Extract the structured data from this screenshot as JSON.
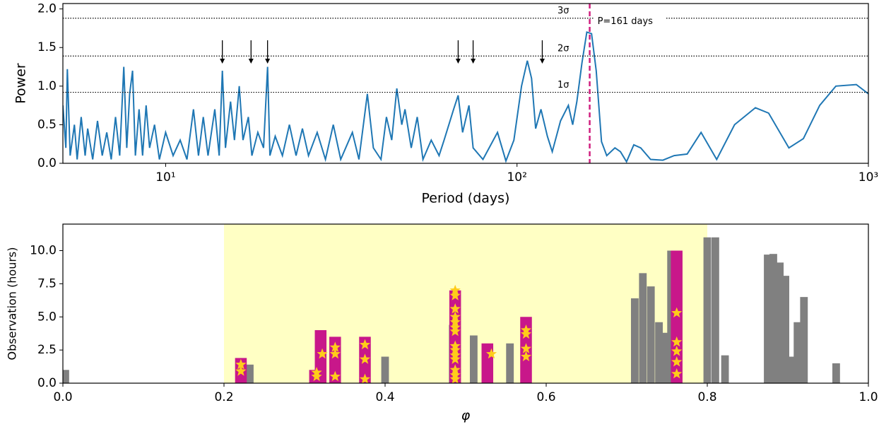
{
  "chart_data": [
    {
      "type": "line",
      "xlabel": "Period (days)",
      "ylabel": "Power",
      "xlog": true,
      "color": "#1f77b4",
      "xlim": [
        5.1,
        1000
      ],
      "ylim": [
        0,
        2.07
      ],
      "xticks": [
        {
          "value": 10,
          "label": "10¹"
        },
        {
          "value": 100,
          "label": "10²"
        },
        {
          "value": 1000,
          "label": "10³"
        }
      ],
      "yticks": [
        {
          "value": 0,
          "label": "0.0"
        },
        {
          "value": 0.5,
          "label": "0.5"
        },
        {
          "value": 1,
          "label": "1.0"
        },
        {
          "value": 1.5,
          "label": "1.5"
        },
        {
          "value": 2,
          "label": "2.0"
        }
      ],
      "x": [
        5.1,
        5.2,
        5.25,
        5.35,
        5.5,
        5.6,
        5.75,
        5.9,
        6.0,
        6.2,
        6.4,
        6.6,
        6.8,
        7.0,
        7.2,
        7.4,
        7.6,
        7.75,
        7.9,
        8.05,
        8.2,
        8.4,
        8.6,
        8.8,
        9.0,
        9.3,
        9.6,
        10.0,
        10.5,
        11.0,
        11.5,
        12.0,
        12.4,
        12.8,
        13.2,
        13.8,
        14.2,
        14.5,
        14.8,
        15.3,
        15.7,
        16.2,
        16.6,
        17.2,
        17.6,
        18.3,
        19.0,
        19.5,
        19.8,
        20.5,
        21.5,
        22.5,
        23.5,
        24.5,
        25.5,
        27,
        28.5,
        30,
        31.5,
        34,
        35.5,
        37.5,
        39,
        41,
        42.5,
        44,
        45.5,
        47,
        48,
        50,
        52,
        54,
        57,
        60,
        62,
        66,
        68,
        70,
        73,
        75,
        80,
        88,
        93,
        98,
        103,
        107,
        110,
        113,
        117,
        122,
        126,
        133,
        140,
        144,
        148,
        153,
        158,
        163,
        168,
        174,
        180,
        190,
        197,
        205,
        215,
        225,
        240,
        260,
        280,
        305,
        334,
        370,
        416,
        477,
        520,
        594,
        653,
        727,
        808,
        924,
        1000
      ],
      "values": [
        0.75,
        0.2,
        1.22,
        0.1,
        0.5,
        0.05,
        0.6,
        0.1,
        0.45,
        0.05,
        0.55,
        0.1,
        0.4,
        0.05,
        0.6,
        0.1,
        1.25,
        0.2,
        0.9,
        1.2,
        0.1,
        0.7,
        0.1,
        0.75,
        0.2,
        0.5,
        0.05,
        0.4,
        0.1,
        0.3,
        0.05,
        0.7,
        0.1,
        0.6,
        0.1,
        0.7,
        0.1,
        1.2,
        0.2,
        0.8,
        0.3,
        1.0,
        0.3,
        0.6,
        0.1,
        0.4,
        0.2,
        1.25,
        0.1,
        0.35,
        0.1,
        0.5,
        0.1,
        0.45,
        0.1,
        0.4,
        0.05,
        0.5,
        0.05,
        0.4,
        0.05,
        0.9,
        0.2,
        0.05,
        0.6,
        0.3,
        0.97,
        0.5,
        0.7,
        0.2,
        0.6,
        0.05,
        0.3,
        0.1,
        0.3,
        0.7,
        0.88,
        0.4,
        0.75,
        0.2,
        0.05,
        0.4,
        0.03,
        0.3,
        1.0,
        1.33,
        1.1,
        0.45,
        0.7,
        0.35,
        0.15,
        0.55,
        0.75,
        0.5,
        0.8,
        1.3,
        1.7,
        1.68,
        1.2,
        0.28,
        0.1,
        0.2,
        0.15,
        0.02,
        0.24,
        0.2,
        0.05,
        0.04,
        0.1,
        0.12,
        0.4,
        0.05,
        0.5,
        0.72,
        0.65,
        0.2,
        0.32,
        0.75,
        1.0,
        1.02,
        0.9
      ],
      "hlines": [
        {
          "value": 0.92,
          "label": "1σ"
        },
        {
          "value": 1.39,
          "label": "2σ"
        },
        {
          "value": 1.88,
          "label": "3σ"
        }
      ],
      "vline": 161,
      "vline_color": "#d01f7f",
      "annotation": "P=161 days",
      "arrows": [
        14.5,
        17.5,
        19.5,
        68,
        75,
        118
      ]
    },
    {
      "type": "bar",
      "xlabel": "φ",
      "ylabel": "Observation (hours)",
      "xlim": [
        0,
        1
      ],
      "ylim": [
        0,
        12
      ],
      "xticks": [
        {
          "value": 0,
          "label": "0.0"
        },
        {
          "value": 0.2,
          "label": "0.2"
        },
        {
          "value": 0.4,
          "label": "0.4"
        },
        {
          "value": 0.6,
          "label": "0.6"
        },
        {
          "value": 0.8,
          "label": "0.8"
        },
        {
          "value": 1,
          "label": "1.0"
        }
      ],
      "yticks": [
        {
          "value": 0,
          "label": "0.0"
        },
        {
          "value": 2.5,
          "label": "2.5"
        },
        {
          "value": 5,
          "label": "5.0"
        },
        {
          "value": 7.5,
          "label": "7.5"
        },
        {
          "value": 10,
          "label": "10.0"
        }
      ],
      "span": [
        0.2,
        0.8
      ],
      "span_color": "#ffffc4",
      "series": [
        {
          "color": "#808080",
          "x": [
            0.003,
            0.232,
            0.4,
            0.484,
            0.51,
            0.555,
            0.71,
            0.72,
            0.73,
            0.74,
            0.748,
            0.755,
            0.8,
            0.81,
            0.822,
            0.875,
            0.882,
            0.89,
            0.897,
            0.905,
            0.912,
            0.92,
            0.96
          ],
          "values": [
            1.0,
            1.4,
            2.0,
            4.4,
            3.6,
            3.0,
            6.4,
            8.3,
            7.3,
            4.6,
            3.8,
            10.0,
            11.0,
            11.0,
            2.1,
            9.7,
            9.75,
            9.1,
            8.1,
            2.0,
            4.6,
            6.5,
            1.5
          ]
        },
        {
          "color": "#c8178a",
          "x": [
            0.221,
            0.313,
            0.32,
            0.338,
            0.375,
            0.487,
            0.527,
            0.575,
            0.762
          ],
          "values": [
            1.9,
            1.0,
            4.0,
            3.5,
            3.5,
            7.0,
            3.0,
            5.0,
            10.0
          ]
        }
      ],
      "stars": {
        "color": "#ffcc1a",
        "x": [
          0.221,
          0.221,
          0.315,
          0.315,
          0.322,
          0.338,
          0.338,
          0.338,
          0.375,
          0.375,
          0.375,
          0.487,
          0.487,
          0.487,
          0.487,
          0.487,
          0.487,
          0.487,
          0.487,
          0.487,
          0.487,
          0.487,
          0.487,
          0.487,
          0.487,
          0.532,
          0.575,
          0.575,
          0.575,
          0.575,
          0.762,
          0.762,
          0.762,
          0.762,
          0.762
        ],
        "y": [
          1.4,
          0.9,
          0.8,
          0.5,
          2.2,
          2.7,
          2.2,
          0.5,
          2.9,
          1.8,
          0.3,
          7.0,
          6.6,
          5.6,
          5.0,
          4.6,
          4.2,
          3.9,
          2.8,
          2.5,
          2.1,
          1.8,
          1.0,
          0.6,
          0.3,
          2.2,
          4.0,
          3.7,
          2.6,
          2.0,
          5.3,
          3.1,
          2.4,
          1.6,
          0.7
        ]
      }
    }
  ]
}
